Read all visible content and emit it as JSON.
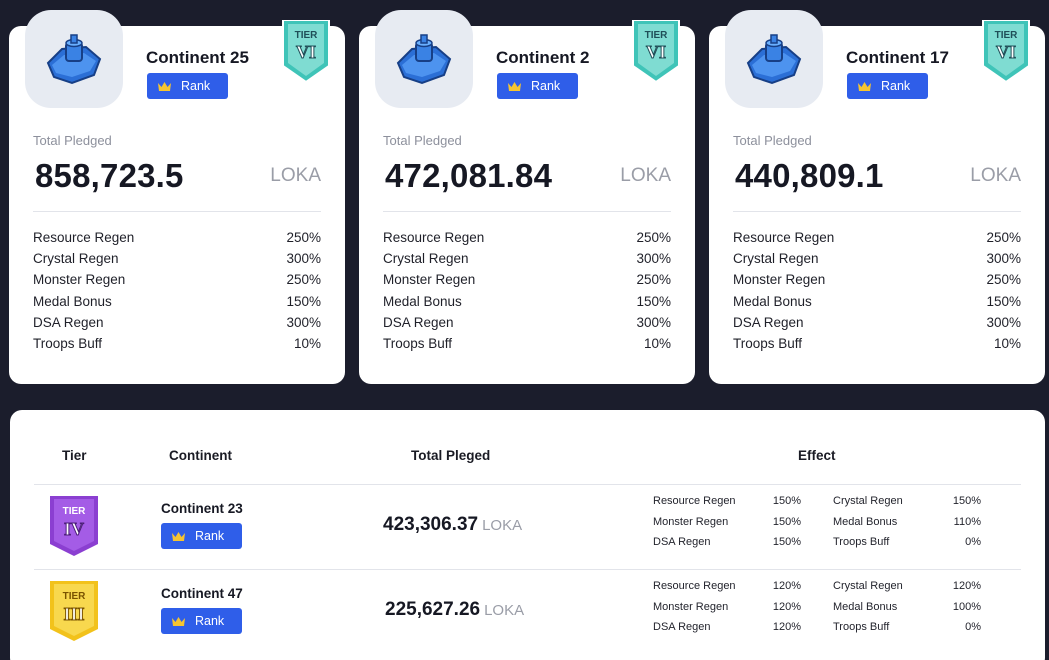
{
  "cards": [
    {
      "name": "Continent 25",
      "rank_label": "Rank",
      "tier_word": "TIER",
      "tier_numeral": "VI",
      "pledge_label": "Total Pledged",
      "pledge_value": "858,723.5",
      "unit": "LOKA",
      "stats": [
        {
          "label": "Resource Regen",
          "value": "250%"
        },
        {
          "label": "Crystal Regen",
          "value": "300%"
        },
        {
          "label": "Monster Regen",
          "value": "250%"
        },
        {
          "label": "Medal Bonus",
          "value": "150%"
        },
        {
          "label": "DSA Regen",
          "value": "300%"
        },
        {
          "label": "Troops Buff",
          "value": "10%"
        }
      ]
    },
    {
      "name": "Continent 2",
      "rank_label": "Rank",
      "tier_word": "TIER",
      "tier_numeral": "VI",
      "pledge_label": "Total Pledged",
      "pledge_value": "472,081.84",
      "unit": "LOKA",
      "stats": [
        {
          "label": "Resource Regen",
          "value": "250%"
        },
        {
          "label": "Crystal Regen",
          "value": "300%"
        },
        {
          "label": "Monster Regen",
          "value": "250%"
        },
        {
          "label": "Medal Bonus",
          "value": "150%"
        },
        {
          "label": "DSA Regen",
          "value": "300%"
        },
        {
          "label": "Troops Buff",
          "value": "10%"
        }
      ]
    },
    {
      "name": "Continent 17",
      "rank_label": "Rank",
      "tier_word": "TIER",
      "tier_numeral": "VI",
      "pledge_label": "Total Pledged",
      "pledge_value": "440,809.1",
      "unit": "LOKA",
      "stats": [
        {
          "label": "Resource Regen",
          "value": "250%"
        },
        {
          "label": "Crystal Regen",
          "value": "300%"
        },
        {
          "label": "Monster Regen",
          "value": "250%"
        },
        {
          "label": "Medal Bonus",
          "value": "150%"
        },
        {
          "label": "DSA Regen",
          "value": "300%"
        },
        {
          "label": "Troops Buff",
          "value": "10%"
        }
      ]
    }
  ],
  "table": {
    "headers": {
      "tier": "Tier",
      "continent": "Continent",
      "total": "Total Pleged",
      "effect": "Effect"
    },
    "rows": [
      {
        "tier_word": "TIER",
        "tier_numeral": "IV",
        "tier_color": "#8b3fd1",
        "name": "Continent 23",
        "rank_label": "Rank",
        "value": "423,306.37",
        "unit": "LOKA",
        "effects_left": [
          {
            "label": "Resource Regen",
            "value": "150%"
          },
          {
            "label": "Monster Regen",
            "value": "150%"
          },
          {
            "label": "DSA Regen",
            "value": "150%"
          }
        ],
        "effects_right": [
          {
            "label": "Crystal Regen",
            "value": "150%"
          },
          {
            "label": "Medal Bonus",
            "value": "110%"
          },
          {
            "label": "Troops Buff",
            "value": "0%"
          }
        ]
      },
      {
        "tier_word": "TIER",
        "tier_numeral": "III",
        "tier_color": "#f2c21b",
        "name": "Continent 47",
        "rank_label": "Rank",
        "value": "225,627.26",
        "unit": "LOKA",
        "effects_left": [
          {
            "label": "Resource Regen",
            "value": "120%"
          },
          {
            "label": "Monster Regen",
            "value": "120%"
          },
          {
            "label": "DSA Regen",
            "value": "120%"
          }
        ],
        "effects_right": [
          {
            "label": "Crystal Regen",
            "value": "120%"
          },
          {
            "label": "Medal Bonus",
            "value": "100%"
          },
          {
            "label": "Troops Buff",
            "value": "0%"
          }
        ]
      }
    ]
  },
  "colors": {
    "background": "#1b1d2c",
    "rank_button": "#2f5ee9",
    "tier_vi": "#3fc4b8",
    "tier_iv": "#8b3fd1",
    "tier_iii": "#f2c21b"
  },
  "icons": [
    "continent-fortress-icon",
    "crown-icon",
    "tier-banner-icon"
  ]
}
